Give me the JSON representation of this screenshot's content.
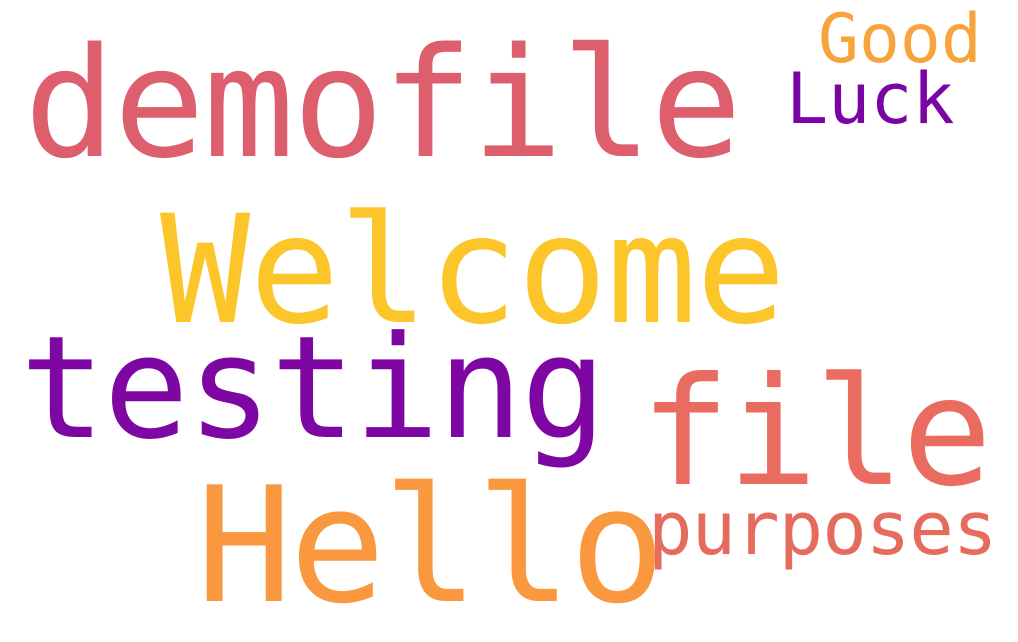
{
  "words": [
    {
      "text": "demofile",
      "color": "#dd5e6c"
    },
    {
      "text": "Good",
      "color": "#f7a43c"
    },
    {
      "text": "Luck",
      "color": "#7b04a5"
    },
    {
      "text": "Welcome",
      "color": "#fcc52a"
    },
    {
      "text": "testing",
      "color": "#7e06a3"
    },
    {
      "text": "file",
      "color": "#ea6b5f"
    },
    {
      "text": "Hello",
      "color": "#f9983f"
    },
    {
      "text": "purposes",
      "color": "#e56b5d"
    }
  ]
}
